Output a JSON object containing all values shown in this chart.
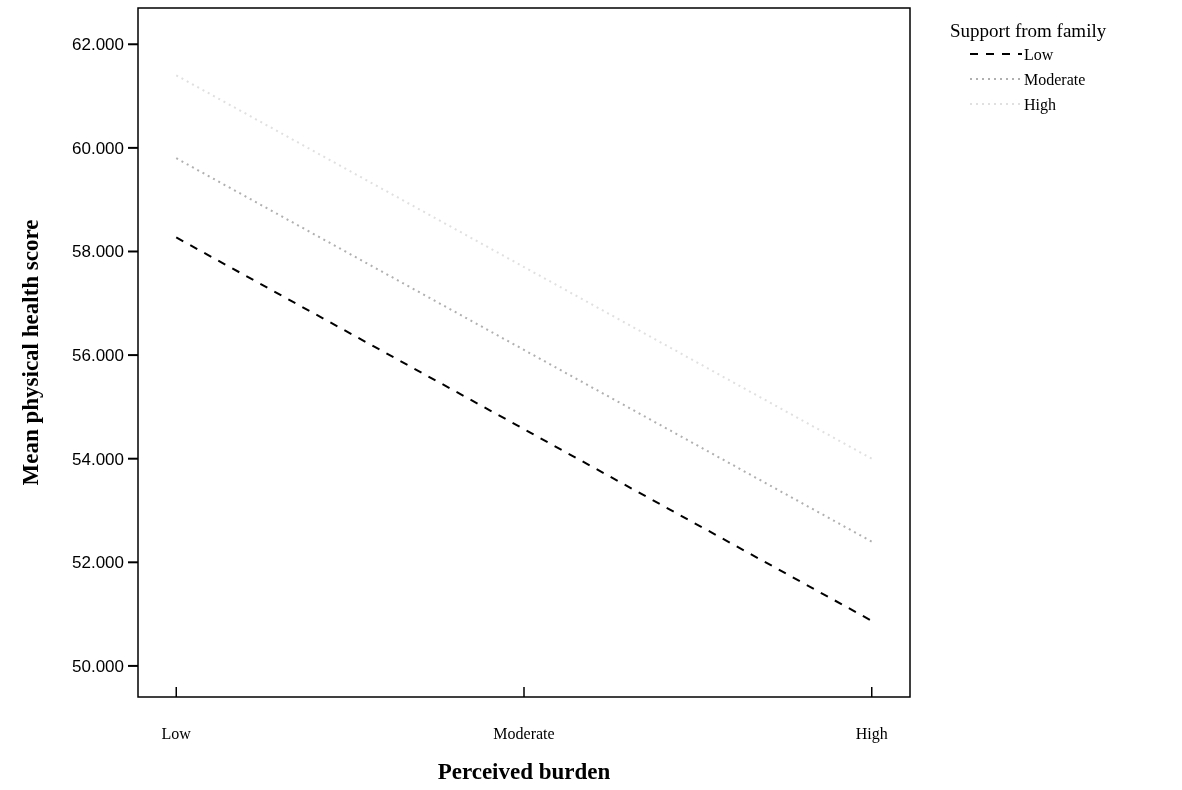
{
  "chart_data": {
    "type": "line",
    "xlabel": "Perceived burden",
    "ylabel": "Mean physical health score",
    "legend_title": "Support from family",
    "legend": "top right",
    "categories": [
      "Low",
      "Moderate",
      "High"
    ],
    "ylim": [
      49.4,
      62.7
    ],
    "yticks": [
      {
        "value": 50,
        "label": "50.000"
      },
      {
        "value": 52,
        "label": "52.000"
      },
      {
        "value": 54,
        "label": "54.000"
      },
      {
        "value": 56,
        "label": "56.000"
      },
      {
        "value": 58,
        "label": "58.000"
      },
      {
        "value": 60,
        "label": "60.000"
      },
      {
        "value": 62,
        "label": "62.000"
      }
    ],
    "grid": false,
    "series": [
      {
        "name": "Low",
        "color": "#000000",
        "line_style": "dashed",
        "values": [
          58.27,
          54.57,
          50.87
        ]
      },
      {
        "name": "Moderate",
        "color": "#b0b0b0",
        "line_style": "dotted",
        "values": [
          59.8,
          56.1,
          52.4
        ]
      },
      {
        "name": "High",
        "color": "#e0e0e0",
        "line_style": "dotted",
        "values": [
          61.4,
          57.7,
          54.0
        ]
      }
    ]
  }
}
